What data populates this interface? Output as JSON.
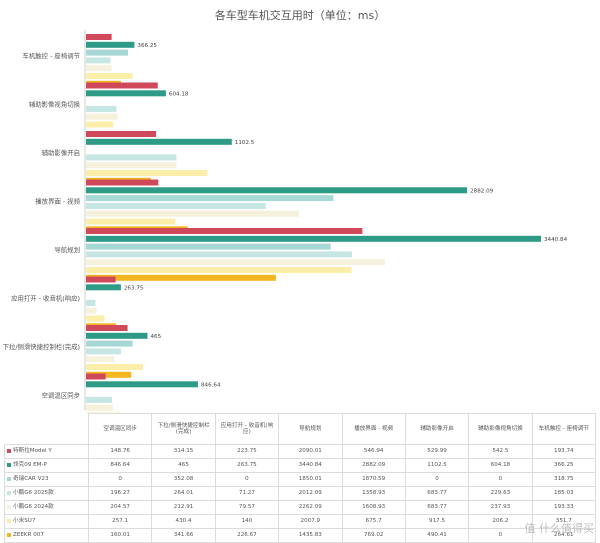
{
  "watermark": "值 什么值得买",
  "chart_data": {
    "type": "bar",
    "orientation": "horizontal",
    "title": "各车型车机交互用时（单位：ms）",
    "categories": [
      "车机触控 - 座椅调节",
      "辅助影像视角切换",
      "辅助影像开启",
      "播放界面 - 视频",
      "导航规划",
      "应用打开 - 收音机(响应)",
      "下拉/侧滑快捷控制栏(完成)",
      "空调温区同步"
    ],
    "table_headers": [
      "空调温区同步",
      "下拉/侧滑快捷控制栏(完成)",
      "应用打开 - 收音机(响应)",
      "导航规划",
      "播放界面 - 视频",
      "辅助影像开启",
      "辅助影像视角切换",
      "车机触控 - 座椅调节"
    ],
    "series": [
      {
        "name": "特斯拉Model Y",
        "color": "#d0495a",
        "values": [
          193.74,
          542.5,
          529.99,
          546.94,
          2090.01,
          223.75,
          314.15,
          148.76
        ]
      },
      {
        "name": "领克09 EM-P",
        "color": "#2e9b86",
        "values": [
          366.25,
          604.18,
          1102.5,
          2882.09,
          3440.84,
          263.75,
          465,
          846.64
        ]
      },
      {
        "name": "奇瑞CAR V23",
        "color": "#a7d8d6",
        "values": [
          318.75,
          0,
          0,
          1870.59,
          1850.01,
          0,
          352.08,
          0
        ]
      },
      {
        "name": "小鹏G6 2025款",
        "color": "#c5e6e2",
        "values": [
          185.03,
          229.63,
          683.77,
          1358.93,
          2012.09,
          71.27,
          264.01,
          196.27
        ]
      },
      {
        "name": "小鹏G6 2024款",
        "color": "#f6f1dd",
        "values": [
          193.33,
          237.93,
          683.77,
          1608.93,
          2262.09,
          79.57,
          212.91,
          204.57
        ]
      },
      {
        "name": "小米SU7",
        "color": "#fbeea9",
        "values": [
          351.7,
          206.2,
          917.5,
          675.7,
          2007.9,
          140.0,
          430.4,
          257.1
        ]
      },
      {
        "name": "ZEEKR 007",
        "color": "#f4b61f",
        "values": [
          264.61,
          0,
          490.41,
          769.02,
          1435.83,
          226.67,
          341.66,
          160.01
        ]
      }
    ],
    "data_labels": [
      "366.25",
      "604.18",
      "1102.5",
      "2882.09",
      "3440.84",
      "263.75",
      "465",
      "846.64"
    ],
    "legend_placement": "table",
    "grid": false
  }
}
